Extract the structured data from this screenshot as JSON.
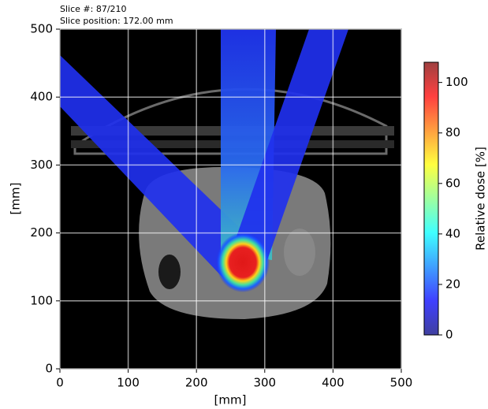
{
  "chart_data": {
    "type": "heatmap",
    "annotations": [
      "Slice #:  87/210",
      "Slice position: 172.00 mm"
    ],
    "xlabel": "[mm]",
    "ylabel": "[mm]",
    "xlim": [
      0,
      500
    ],
    "ylim": [
      0,
      500
    ],
    "xticks": [
      0,
      100,
      200,
      300,
      400,
      500
    ],
    "yticks": [
      0,
      100,
      200,
      300,
      400,
      500
    ],
    "grid": true,
    "colorbar": {
      "label": "Relative dose [%]",
      "lim": [
        0,
        108
      ],
      "ticks": [
        0,
        20,
        40,
        60,
        80,
        100
      ],
      "colormap": "jet"
    }
  }
}
